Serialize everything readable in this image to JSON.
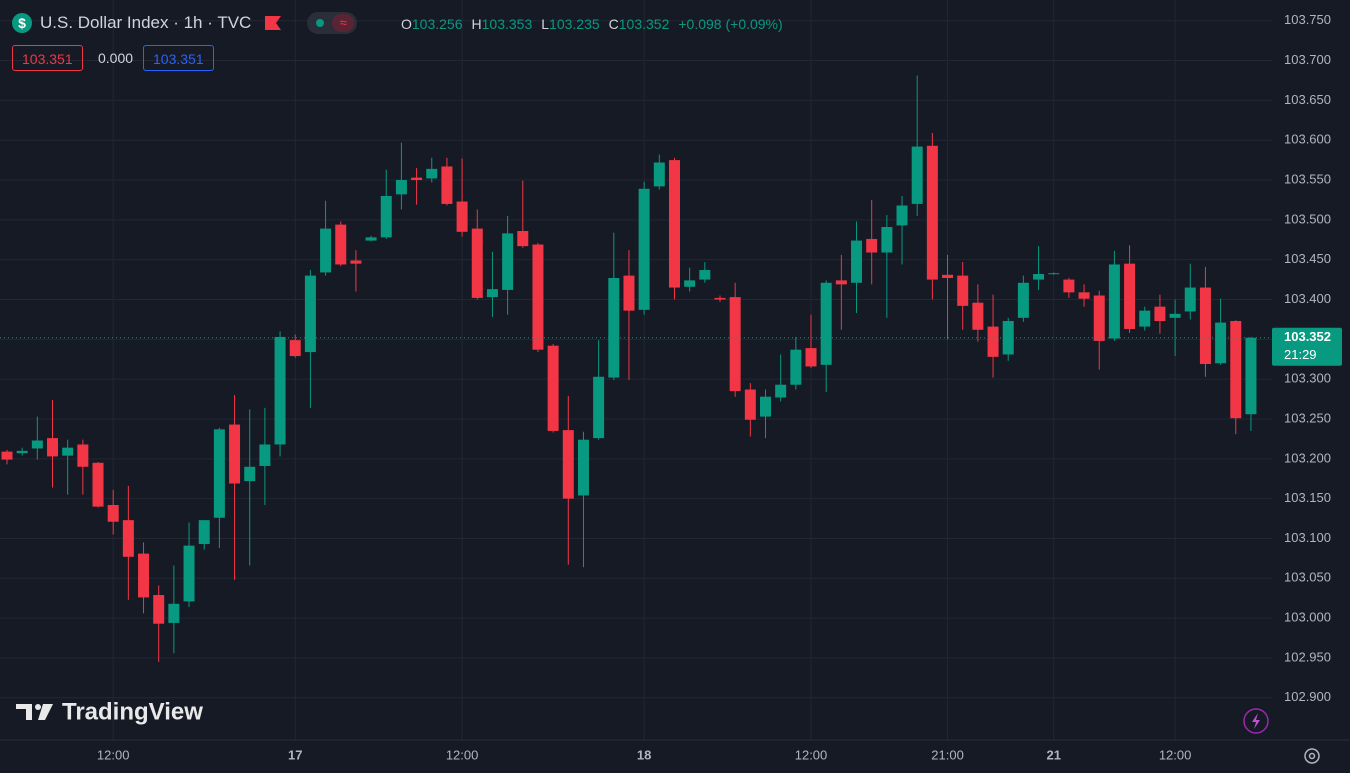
{
  "header": {
    "title": "U.S. Dollar Index · 1h · TVC",
    "o": "O",
    "o_value": "103.256",
    "h": "H",
    "h_value": "103.353",
    "l": "L",
    "l_value": "103.235",
    "c": "C",
    "c_value": "103.352",
    "change": "+0.098 (+0.09%)",
    "bid": "103.351",
    "spread": "0.000",
    "ask": "103.351"
  },
  "watermark": "TradingView",
  "price_tag": {
    "price": "103.352",
    "countdown": "21:29"
  },
  "chart_data": {
    "type": "candlestick",
    "up_color": "#089981",
    "down_color": "#f23645",
    "grid": true,
    "categories": [
      null,
      null,
      null,
      null,
      null,
      null,
      null,
      "12:00",
      null,
      null,
      null,
      null,
      null,
      null,
      null,
      null,
      null,
      null,
      null,
      "17",
      null,
      null,
      null,
      null,
      null,
      null,
      null,
      null,
      null,
      null,
      "12:00",
      null,
      null,
      null,
      null,
      null,
      null,
      null,
      null,
      null,
      null,
      null,
      "18",
      null,
      null,
      null,
      null,
      null,
      null,
      null,
      null,
      null,
      null,
      "12:00",
      null,
      null,
      null,
      null,
      null,
      null,
      null,
      null,
      "21:00",
      null,
      null,
      null,
      null,
      null,
      null,
      "21",
      null,
      null,
      null,
      null,
      null,
      null,
      null,
      "12:00",
      null,
      null,
      null,
      null,
      null
    ],
    "open": [
      103.209,
      103.207,
      103.213,
      103.226,
      103.204,
      103.218,
      103.195,
      103.142,
      103.123,
      103.081,
      103.029,
      102.994,
      103.021,
      103.093,
      103.126,
      103.243,
      103.172,
      103.191,
      103.218,
      103.349,
      103.334,
      103.434,
      103.494,
      103.449,
      103.474,
      103.478,
      103.532,
      103.553,
      103.552,
      103.567,
      103.523,
      103.489,
      103.403,
      103.412,
      103.486,
      103.469,
      103.342,
      103.236,
      103.154,
      103.226,
      103.302,
      103.43,
      103.387,
      103.542,
      103.575,
      103.416,
      103.425,
      103.402,
      103.403,
      103.287,
      103.253,
      103.277,
      103.293,
      103.339,
      103.318,
      103.424,
      103.421,
      103.476,
      103.459,
      103.493,
      103.52,
      103.593,
      103.431,
      103.43,
      103.396,
      103.366,
      103.331,
      103.377,
      103.425,
      103.432,
      103.425,
      103.409,
      103.405,
      103.351,
      103.445,
      103.366,
      103.391,
      103.377,
      103.385,
      103.415,
      103.32,
      103.373,
      103.256
    ],
    "high": [
      103.211,
      103.214,
      103.253,
      103.274,
      103.224,
      103.224,
      103.196,
      103.161,
      103.166,
      103.095,
      103.041,
      103.066,
      103.12,
      103.123,
      103.239,
      103.28,
      103.262,
      103.264,
      103.36,
      103.356,
      103.437,
      103.524,
      103.498,
      103.462,
      103.48,
      103.563,
      103.597,
      103.565,
      103.578,
      103.578,
      103.577,
      103.513,
      103.46,
      103.505,
      103.549,
      103.471,
      103.344,
      103.279,
      103.234,
      103.349,
      103.484,
      103.462,
      103.548,
      103.582,
      103.578,
      103.44,
      103.447,
      103.405,
      103.421,
      103.295,
      103.287,
      103.331,
      103.353,
      103.381,
      103.424,
      103.456,
      103.498,
      103.525,
      103.506,
      103.53,
      103.681,
      103.609,
      103.456,
      103.447,
      103.419,
      103.406,
      103.377,
      103.43,
      103.467,
      103.434,
      103.427,
      103.419,
      103.411,
      103.461,
      103.468,
      103.391,
      103.406,
      103.4,
      103.445,
      103.441,
      103.401,
      103.374,
      103.353
    ],
    "low": [
      103.193,
      103.204,
      103.199,
      103.164,
      103.155,
      103.155,
      103.139,
      103.105,
      103.023,
      103.006,
      102.945,
      102.956,
      103.014,
      103.086,
      103.088,
      103.048,
      103.066,
      103.142,
      103.203,
      103.327,
      103.264,
      103.43,
      103.442,
      103.41,
      103.473,
      103.476,
      103.513,
      103.519,
      103.547,
      103.518,
      103.479,
      103.4,
      103.378,
      103.381,
      103.465,
      103.334,
      103.233,
      103.067,
      103.064,
      103.224,
      103.299,
      103.299,
      103.381,
      103.538,
      103.4,
      103.41,
      103.421,
      103.397,
      103.278,
      103.228,
      103.226,
      103.272,
      103.287,
      103.314,
      103.284,
      103.362,
      103.383,
      103.419,
      103.377,
      103.444,
      103.505,
      103.4,
      103.35,
      103.362,
      103.347,
      103.302,
      103.323,
      103.372,
      103.412,
      103.431,
      103.402,
      103.391,
      103.312,
      103.348,
      103.358,
      103.361,
      103.357,
      103.329,
      103.375,
      103.303,
      103.318,
      103.231,
      103.235
    ],
    "close": [
      103.199,
      103.21,
      103.223,
      103.203,
      103.214,
      103.19,
      103.14,
      103.121,
      103.077,
      103.026,
      102.993,
      103.018,
      103.091,
      103.123,
      103.237,
      103.169,
      103.19,
      103.218,
      103.353,
      103.329,
      103.43,
      103.489,
      103.444,
      103.445,
      103.478,
      103.53,
      103.55,
      103.55,
      103.564,
      103.52,
      103.485,
      103.402,
      103.413,
      103.483,
      103.467,
      103.337,
      103.235,
      103.15,
      103.224,
      103.303,
      103.427,
      103.386,
      103.539,
      103.572,
      103.415,
      103.424,
      103.437,
      103.4,
      103.285,
      103.249,
      103.278,
      103.293,
      103.337,
      103.316,
      103.421,
      103.419,
      103.474,
      103.459,
      103.491,
      103.518,
      103.592,
      103.425,
      103.427,
      103.392,
      103.362,
      103.328,
      103.373,
      103.421,
      103.432,
      103.433,
      103.409,
      103.401,
      103.348,
      103.444,
      103.363,
      103.386,
      103.373,
      103.382,
      103.415,
      103.319,
      103.371,
      103.251,
      103.352
    ],
    "ylim": [
      102.847,
      103.776
    ],
    "yticks": [
      {
        "value": 102.9,
        "label": "102.900"
      },
      {
        "value": 102.95,
        "label": "102.950"
      },
      {
        "value": 103.0,
        "label": "103.000"
      },
      {
        "value": 103.05,
        "label": "103.050"
      },
      {
        "value": 103.1,
        "label": "103.100"
      },
      {
        "value": 103.15,
        "label": "103.150"
      },
      {
        "value": 103.2,
        "label": "103.200"
      },
      {
        "value": 103.25,
        "label": "103.250"
      },
      {
        "value": 103.3,
        "label": "103.300"
      },
      {
        "value": 103.35,
        "label": "103.350"
      },
      {
        "value": 103.4,
        "label": "103.400"
      },
      {
        "value": 103.45,
        "label": "103.450"
      },
      {
        "value": 103.5,
        "label": "103.500"
      },
      {
        "value": 103.55,
        "label": "103.550"
      },
      {
        "value": 103.6,
        "label": "103.600"
      },
      {
        "value": 103.65,
        "label": "103.650"
      },
      {
        "value": 103.7,
        "label": "103.700"
      },
      {
        "value": 103.75,
        "label": "103.750"
      }
    ]
  }
}
